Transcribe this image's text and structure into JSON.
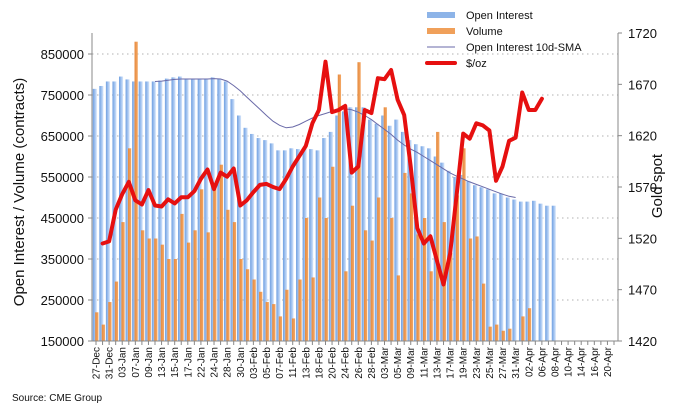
{
  "chart_data": {
    "type": "bar",
    "title": "",
    "xlabel": "",
    "ylabel": "Open Interest / Volume (contracts)",
    "y2label": "Gold spot",
    "ylim": [
      150000,
      900000
    ],
    "y2lim": [
      1420,
      1720
    ],
    "yticks": [
      "150000",
      "250000",
      "350000",
      "450000",
      "550000",
      "650000",
      "750000",
      "850000"
    ],
    "y2ticks": [
      "1420",
      "1470",
      "1520",
      "1570",
      "1620",
      "1670",
      "1720"
    ],
    "grid": true,
    "legend_position": "top-right",
    "x_tick_labels": [
      "27-Dec",
      "31-Dec",
      "03-Jan",
      "07-Jan",
      "09-Jan",
      "13-Jan",
      "15-Jan",
      "17-Jan",
      "22-Jan",
      "24-Jan",
      "28-Jan",
      "30-Jan",
      "03-Feb",
      "05-Feb",
      "07-Feb",
      "11-Feb",
      "13-Feb",
      "18-Feb",
      "20-Feb",
      "24-Feb",
      "26-Feb",
      "28-Feb",
      "03-Mar",
      "05-Mar",
      "09-Mar",
      "11-Mar",
      "13-Mar",
      "17-Mar",
      "19-Mar",
      "23-Mar",
      "25-Mar",
      "27-Mar",
      "31-Mar",
      "02-Apr",
      "06-Apr",
      "08-Apr",
      "10-Apr",
      "14-Apr",
      "16-Apr",
      "20-Apr"
    ],
    "total_slots": 80,
    "series": [
      {
        "name": "Open Interest",
        "type": "bar",
        "color": "#8db4e8",
        "values": [
          765000,
          772000,
          783000,
          783000,
          795000,
          788000,
          783000,
          783000,
          783000,
          783000,
          785000,
          790000,
          793000,
          795000,
          790000,
          790000,
          790000,
          790000,
          793000,
          790000,
          783000,
          740000,
          700000,
          670000,
          655000,
          645000,
          640000,
          632000,
          615000,
          615000,
          620000,
          618000,
          620000,
          618000,
          615000,
          645000,
          660000,
          700000,
          710000,
          720000,
          720000,
          720000,
          690000,
          680000,
          700000,
          675000,
          690000,
          660000,
          640000,
          630000,
          625000,
          620000,
          600000,
          585000,
          565000,
          550000,
          555000,
          540000,
          530000,
          525000,
          520000,
          510000,
          510000,
          500000,
          495000,
          490000,
          490000,
          492000,
          485000,
          480000,
          480000
        ]
      },
      {
        "name": "Volume",
        "type": "bar",
        "color": "#f0a05a",
        "values": [
          220000,
          190000,
          245000,
          295000,
          440000,
          620000,
          880000,
          420000,
          400000,
          400000,
          385000,
          350000,
          350000,
          460000,
          390000,
          420000,
          520000,
          415000,
          530000,
          580000,
          470000,
          440000,
          350000,
          325000,
          300000,
          270000,
          245000,
          240000,
          210000,
          275000,
          205000,
          300000,
          450000,
          305000,
          500000,
          450000,
          575000,
          800000,
          320000,
          480000,
          830000,
          420000,
          395000,
          500000,
          720000,
          450000,
          310000,
          560000,
          510000,
          410000,
          450000,
          320000,
          660000,
          440000,
          365000,
          505000,
          620000,
          400000,
          405000,
          290000,
          185000,
          190000,
          175000,
          180000,
          0,
          210000,
          230000,
          0,
          0,
          0,
          0
        ]
      },
      {
        "name": "Open Interest 10d-SMA",
        "type": "line",
        "color": "#6a6aa8",
        "start_index": 9,
        "values": [
          783000,
          784000,
          786000,
          788000,
          789000,
          789000,
          789000,
          789000,
          789000,
          790000,
          789000,
          784000,
          773000,
          760000,
          745000,
          730000,
          715000,
          700000,
          686000,
          676000,
          670000,
          672000,
          678000,
          686000,
          694000,
          700000,
          705000,
          710000,
          715000,
          716000,
          714000,
          708000,
          700000,
          690000,
          678000,
          666000,
          654000,
          640000,
          628000,
          618000,
          610000,
          600000,
          590000,
          580000,
          570000,
          560000,
          552000,
          545000,
          538000,
          532000,
          526000,
          520000,
          514000,
          508000,
          503000,
          500000
        ]
      },
      {
        "name": "$/oz",
        "type": "line",
        "axis": "right",
        "color": "#e61010",
        "start_index": 1,
        "values": [
          1515,
          1517,
          1548,
          1563,
          1575,
          1557,
          1553,
          1567,
          1552,
          1551,
          1558,
          1554,
          1560,
          1560,
          1566,
          1578,
          1587,
          1568,
          1584,
          1580,
          1588,
          1552,
          1557,
          1565,
          1572,
          1573,
          1570,
          1568,
          1578,
          1590,
          1600,
          1610,
          1632,
          1645,
          1692,
          1643,
          1645,
          1649,
          1584,
          1590,
          1645,
          1642,
          1676,
          1675,
          1684,
          1655,
          1640,
          1590,
          1530,
          1515,
          1522,
          1498,
          1475,
          1505,
          1562,
          1622,
          1617,
          1632,
          1630,
          1625,
          1576,
          1590,
          1615,
          1618,
          1662,
          1645,
          1645,
          1656
        ]
      }
    ]
  },
  "legend": {
    "items": [
      {
        "label": "Open Interest",
        "swatch": "bar",
        "color": "#8db4e8"
      },
      {
        "label": "Volume",
        "swatch": "bar",
        "color": "#f0a05a"
      },
      {
        "label": "Open Interest 10d-SMA",
        "swatch": "thin-line",
        "color": "#6a6aa8"
      },
      {
        "label": "$/oz",
        "swatch": "thick-line",
        "color": "#e61010"
      }
    ]
  },
  "source": "Source: CME Group"
}
